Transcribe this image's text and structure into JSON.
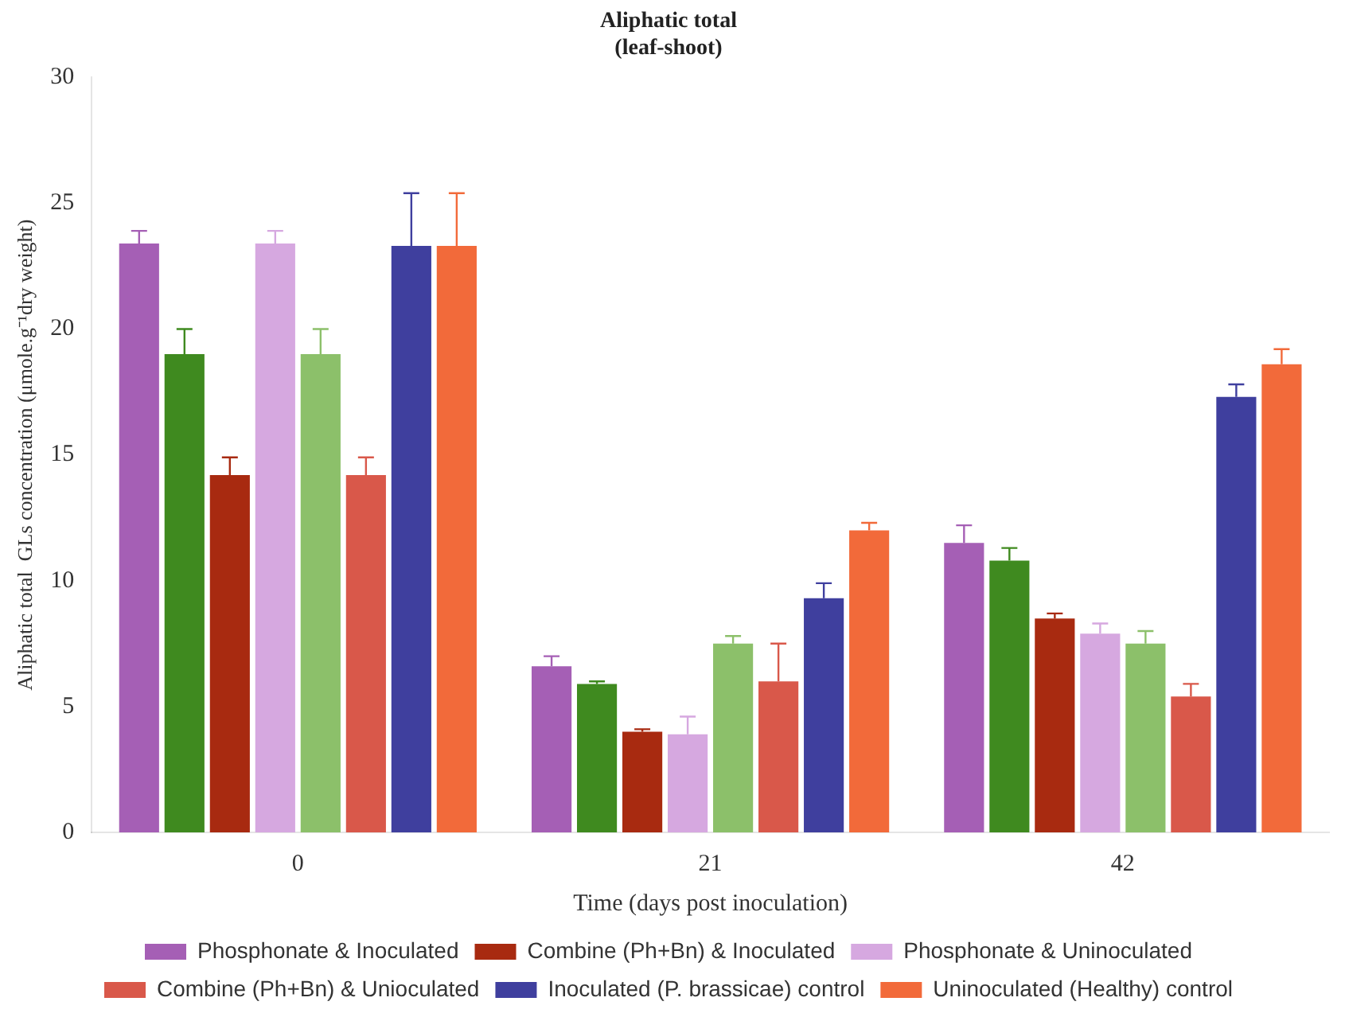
{
  "chart_data": {
    "type": "bar",
    "title": "Aliphatic total",
    "subtitle": "(leaf-shoot)",
    "xlabel": "Time (days post inoculation)",
    "ylabel": "Aliphatic total  GLs concentration (μmole.g⁻¹dry weight)",
    "categories": [
      "0",
      "21",
      "42"
    ],
    "ylim": [
      0,
      30
    ],
    "yticks": [
      0,
      5,
      10,
      15,
      20,
      25,
      30
    ],
    "grid": false,
    "legend": "bottom",
    "series": [
      {
        "name": "Phosphonate & Inoculated",
        "color": "#a55fb5",
        "values": [
          23.4,
          6.6,
          11.5
        ],
        "errors": [
          0.5,
          0.4,
          0.7
        ]
      },
      {
        "color": "#3f8a1f",
        "values": [
          19.0,
          5.9,
          10.8
        ],
        "errors": [
          1.0,
          0.1,
          0.5
        ]
      },
      {
        "name": "Combine (Ph+Bn) & Inoculated",
        "color": "#a82a10",
        "values": [
          14.2,
          4.0,
          8.5
        ],
        "errors": [
          0.7,
          0.1,
          0.2
        ]
      },
      {
        "name": "Phosphonate & Uninoculated",
        "color": "#d6a8e0",
        "values": [
          23.4,
          3.9,
          7.9
        ],
        "errors": [
          0.5,
          0.7,
          0.4
        ]
      },
      {
        "color": "#8cc06a",
        "values": [
          19.0,
          7.5,
          7.5
        ],
        "errors": [
          1.0,
          0.3,
          0.5
        ]
      },
      {
        "name": "Combine (Ph+Bn) & Unioculated",
        "color": "#d9584a",
        "values": [
          14.2,
          6.0,
          5.4
        ],
        "errors": [
          0.7,
          1.5,
          0.5
        ]
      },
      {
        "name": "Inoculated (P. brassicae) control",
        "color": "#3f3f9e",
        "values": [
          23.3,
          9.3,
          17.3
        ],
        "errors": [
          2.1,
          0.6,
          0.5
        ]
      },
      {
        "name": "Uninoculated (Healthy) control",
        "color": "#f26a3a",
        "values": [
          23.3,
          12.0,
          18.6
        ],
        "errors": [
          2.1,
          0.3,
          0.6
        ]
      }
    ]
  }
}
